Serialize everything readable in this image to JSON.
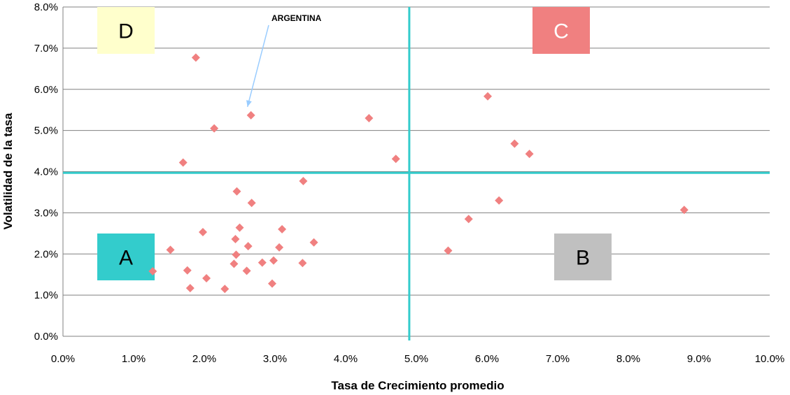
{
  "chart_data": {
    "type": "scatter",
    "xlabel": "Tasa de Crecimiento promedio",
    "ylabel": "Volatilidad de la tasa",
    "xlim": [
      0,
      10
    ],
    "ylim": [
      0,
      8
    ],
    "x_ticks": [
      "0.0%",
      "1.0%",
      "2.0%",
      "3.0%",
      "4.0%",
      "5.0%",
      "6.0%",
      "7.0%",
      "8.0%",
      "9.0%",
      "10.0%"
    ],
    "y_ticks": [
      "0.0%",
      "1.0%",
      "2.0%",
      "3.0%",
      "4.0%",
      "5.0%",
      "6.0%",
      "7.0%",
      "8.0%"
    ],
    "grid": "horizontal",
    "marker": "diamond",
    "marker_color": "#F08080",
    "divider_color": "#33CCCC",
    "dividers": {
      "x": 4.9,
      "y": 3.97
    },
    "points": [
      {
        "x": 1.27,
        "y": 1.58
      },
      {
        "x": 1.52,
        "y": 2.1
      },
      {
        "x": 1.7,
        "y": 4.22
      },
      {
        "x": 1.76,
        "y": 1.6
      },
      {
        "x": 1.8,
        "y": 1.17
      },
      {
        "x": 1.88,
        "y": 6.77
      },
      {
        "x": 1.98,
        "y": 2.53
      },
      {
        "x": 2.03,
        "y": 1.41
      },
      {
        "x": 2.14,
        "y": 5.05
      },
      {
        "x": 2.29,
        "y": 1.15
      },
      {
        "x": 2.42,
        "y": 1.76
      },
      {
        "x": 2.44,
        "y": 2.36
      },
      {
        "x": 2.45,
        "y": 1.98
      },
      {
        "x": 2.46,
        "y": 3.52
      },
      {
        "x": 2.5,
        "y": 2.64
      },
      {
        "x": 2.6,
        "y": 1.59
      },
      {
        "x": 2.62,
        "y": 2.19
      },
      {
        "x": 2.66,
        "y": 5.37
      },
      {
        "x": 2.67,
        "y": 3.24
      },
      {
        "x": 2.82,
        "y": 1.79
      },
      {
        "x": 2.96,
        "y": 1.28
      },
      {
        "x": 2.98,
        "y": 1.84
      },
      {
        "x": 3.06,
        "y": 2.16
      },
      {
        "x": 3.1,
        "y": 2.6
      },
      {
        "x": 3.39,
        "y": 1.78
      },
      {
        "x": 3.4,
        "y": 3.77
      },
      {
        "x": 3.55,
        "y": 2.28
      },
      {
        "x": 4.33,
        "y": 5.3
      },
      {
        "x": 4.71,
        "y": 4.31
      },
      {
        "x": 5.45,
        "y": 2.08
      },
      {
        "x": 5.74,
        "y": 2.85
      },
      {
        "x": 6.01,
        "y": 5.83
      },
      {
        "x": 6.17,
        "y": 3.3
      },
      {
        "x": 6.39,
        "y": 4.68
      },
      {
        "x": 6.6,
        "y": 4.43
      },
      {
        "x": 8.79,
        "y": 3.07
      }
    ],
    "quadrants": [
      {
        "label": "D",
        "color": "#FFFFCC",
        "text_color": "#000000"
      },
      {
        "label": "C",
        "color": "#F08080",
        "text_color": "#FFFFFF"
      },
      {
        "label": "A",
        "color": "#33CCCC",
        "text_color": "#000000"
      },
      {
        "label": "B",
        "color": "#C0C0C0",
        "text_color": "#000000"
      }
    ],
    "annotations": [
      {
        "text": "ARGENTINA",
        "target": {
          "x": 2.66,
          "y": 5.37
        },
        "arrow_color": "#99CCFF"
      }
    ]
  }
}
